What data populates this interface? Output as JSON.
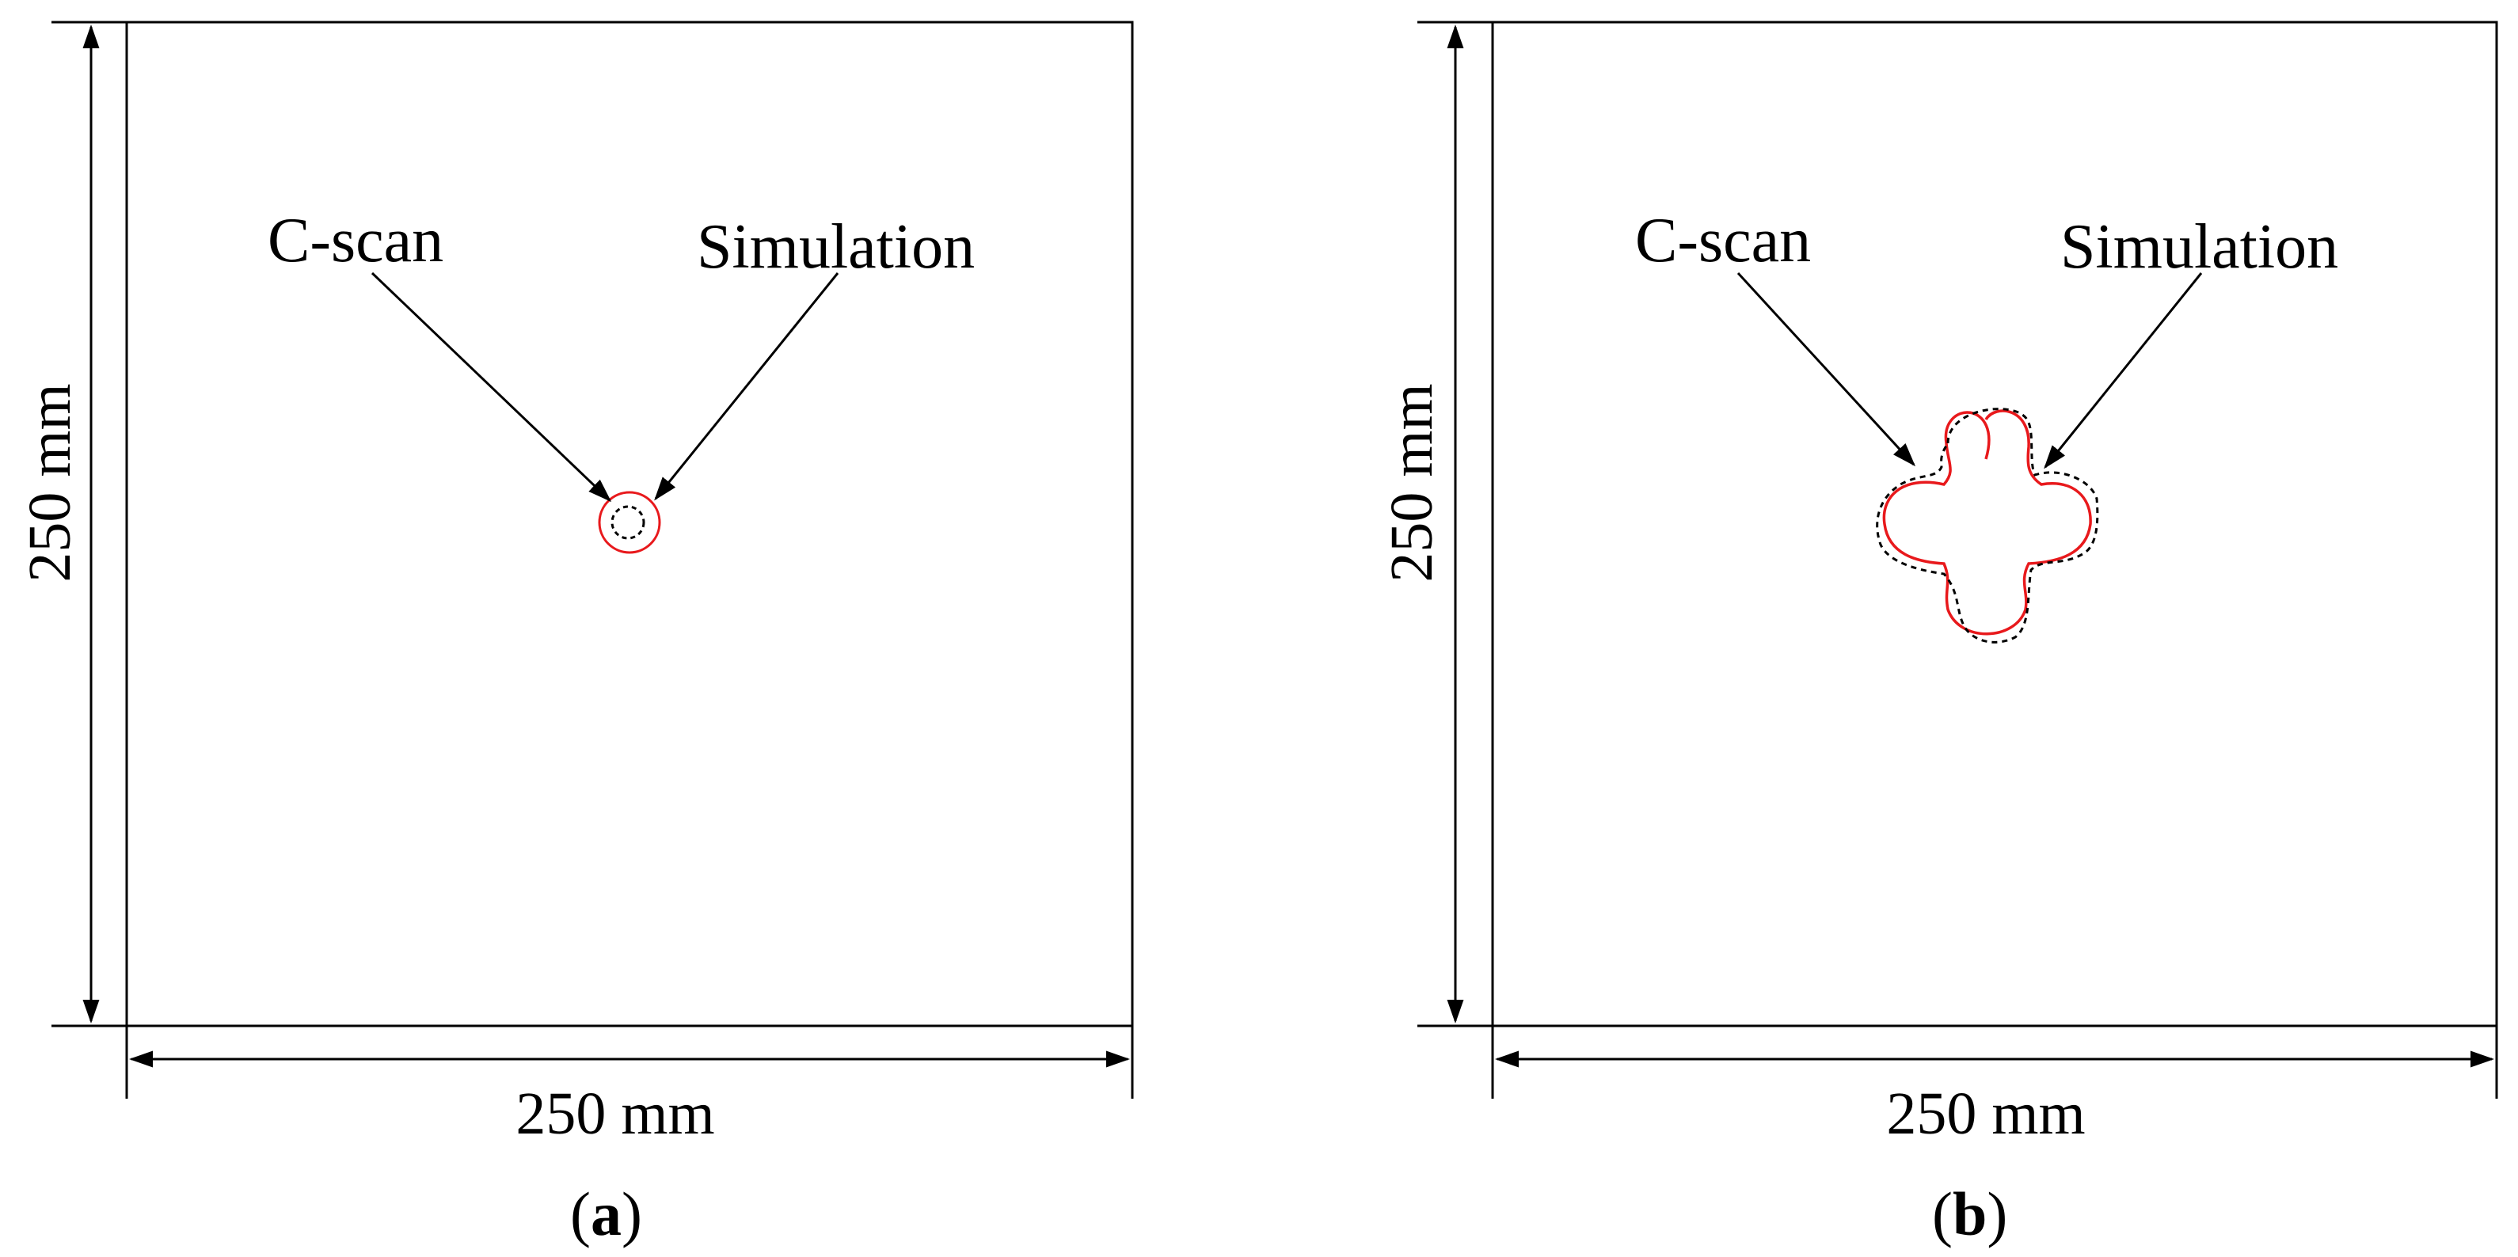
{
  "panels": [
    {
      "id": "a",
      "caption_open": "(",
      "caption_letter": "a",
      "caption_close": ")",
      "width_label": "250 mm",
      "height_label": "250 mm",
      "cscan_label": "C-scan",
      "simulation_label": "Simulation",
      "damage_shape": "small-circle"
    },
    {
      "id": "b",
      "caption_open": "(",
      "caption_letter": "b",
      "caption_close": ")",
      "width_label": "250 mm",
      "height_label": "250 mm",
      "cscan_label": "C-scan",
      "simulation_label": "Simulation",
      "damage_shape": "four-lobed"
    }
  ],
  "colors": {
    "simulation": "#e8191c",
    "cscan": "#000000",
    "frame": "#000000"
  }
}
